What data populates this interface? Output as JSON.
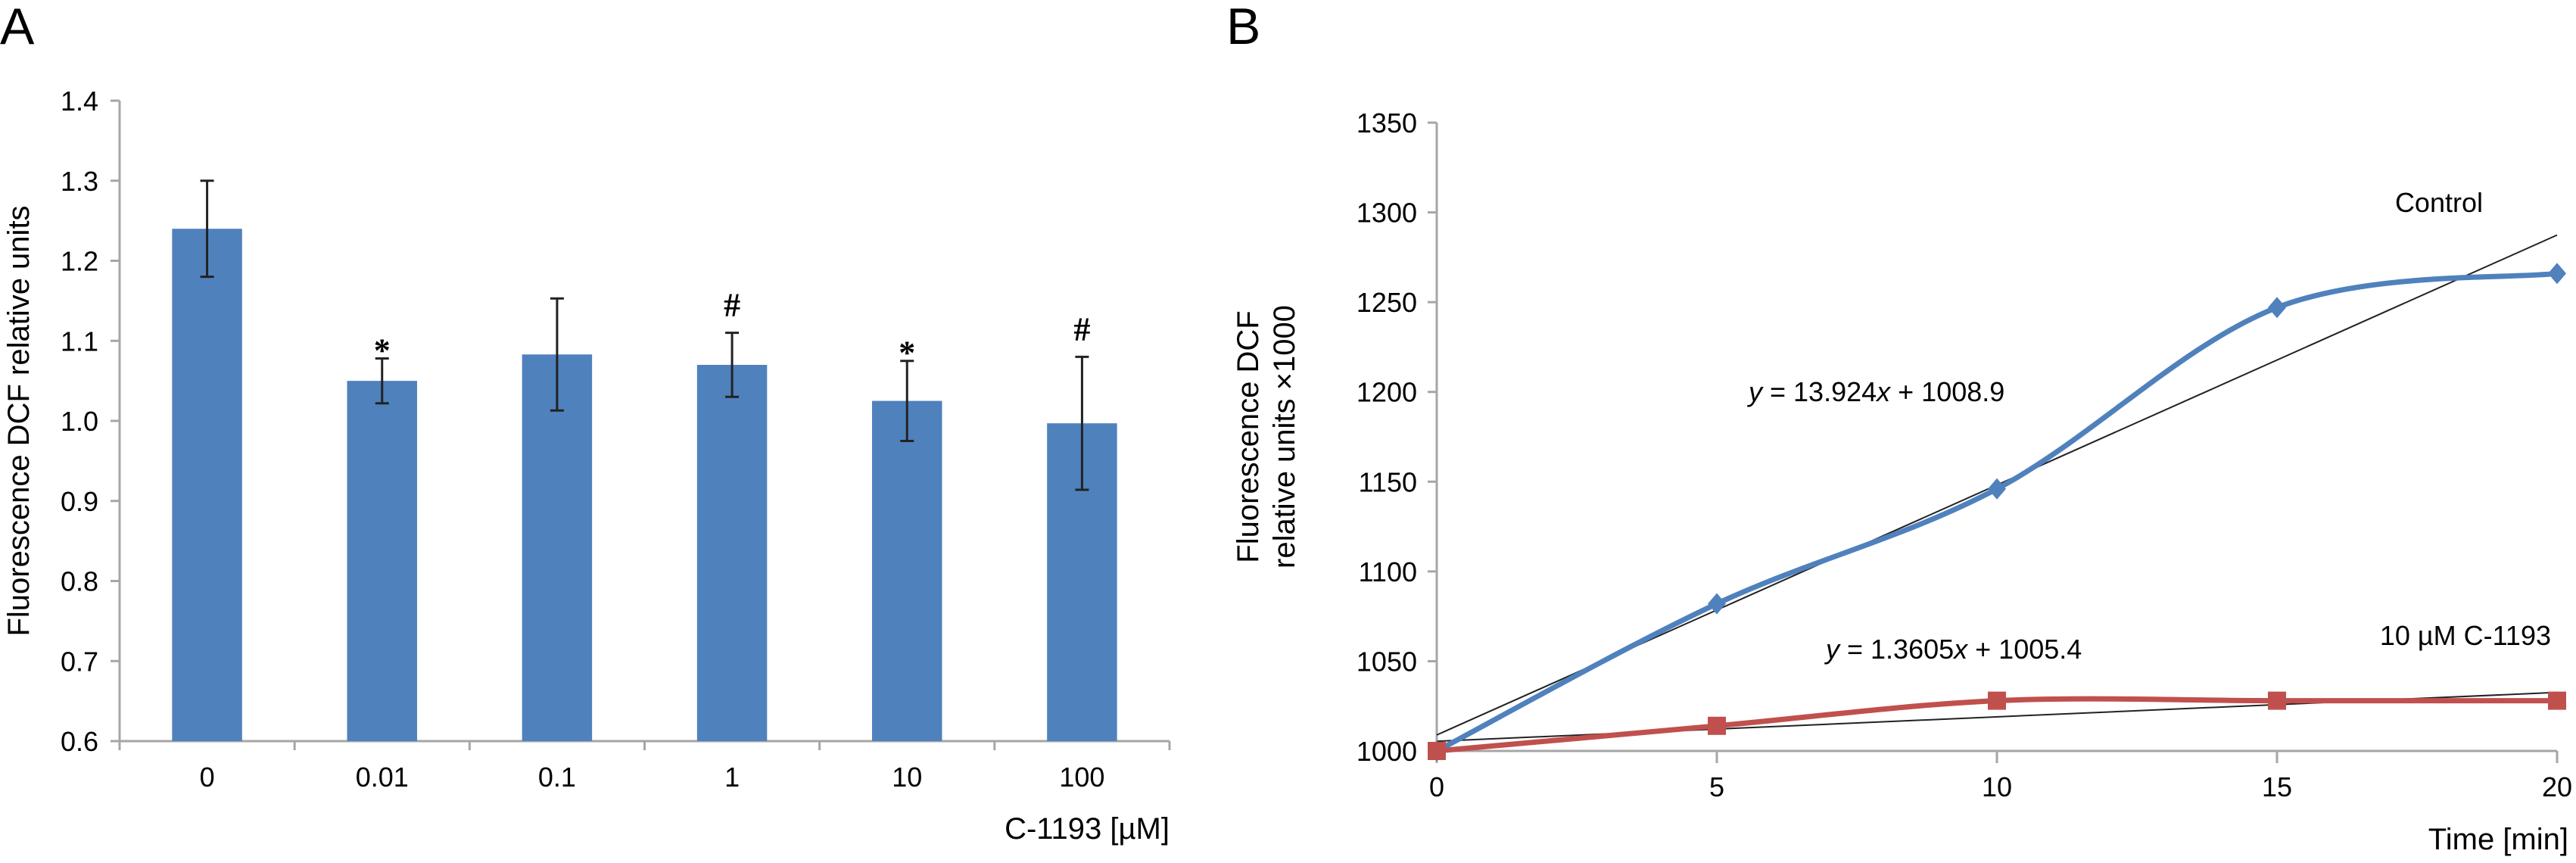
{
  "chart_data": [
    {
      "panel": "A",
      "type": "bar",
      "title": "",
      "xlabel": "C-1193 [µM]",
      "ylabel": "Fluorescence DCF relative units",
      "ylim": [
        0.6,
        1.4
      ],
      "yticks": [
        "0.6",
        "0.7",
        "0.8",
        "0.9",
        "1.0",
        "1.1",
        "1.2",
        "1.3",
        "1.4"
      ],
      "ytick_values": [
        0.6,
        0.7,
        0.8,
        0.9,
        1.0,
        1.1,
        1.2,
        1.3,
        1.4
      ],
      "categories": [
        "0",
        "0.01",
        "0.1",
        "1",
        "10",
        "100"
      ],
      "values": [
        1.24,
        1.05,
        1.083,
        1.07,
        1.025,
        0.997
      ],
      "error": [
        0.06,
        0.028,
        0.07,
        0.04,
        0.05,
        0.083
      ],
      "annotations": [
        "",
        "*",
        "",
        "#",
        "*",
        "#"
      ],
      "grid": false,
      "bar_color": "#4F81BD",
      "error_color": "#222222"
    },
    {
      "panel": "B",
      "type": "line",
      "title": "",
      "xlabel": "Time [min]",
      "ylabel_line1": "Fluorescence DCF",
      "ylabel_line2": "relative units ×1000",
      "xlim": [
        0,
        20
      ],
      "ylim": [
        1000,
        1350
      ],
      "xticks": [
        "0",
        "5",
        "10",
        "15",
        "20"
      ],
      "xtick_values": [
        0,
        5,
        10,
        15,
        20
      ],
      "yticks": [
        "1000",
        "1050",
        "1100",
        "1150",
        "1200",
        "1250",
        "1300",
        "1350"
      ],
      "ytick_values": [
        1000,
        1050,
        1100,
        1150,
        1200,
        1250,
        1300,
        1350
      ],
      "x": [
        0,
        5,
        10,
        15,
        20
      ],
      "grid": false,
      "series": [
        {
          "name": "Control",
          "values": [
            1000,
            1082,
            1146,
            1247,
            1266
          ],
          "color": "#4F81BD",
          "marker": "diamond",
          "trendline": {
            "slope": 13.924,
            "intercept": 1008.9,
            "equation": "y = 13.924x + 1008.9"
          }
        },
        {
          "name": "10 µM C-1193",
          "values": [
            1000,
            1014,
            1028,
            1028,
            1028
          ],
          "color": "#C0504D",
          "marker": "square",
          "trendline": {
            "slope": 1.3605,
            "intercept": 1005.4,
            "equation": "y = 1.3605x + 1005.4"
          }
        }
      ],
      "annotations": {
        "control_label": "Control",
        "treated_label": "10 µM C-1193",
        "eq_control_prefix": "y",
        "eq_control_body": " = 13.924",
        "eq_control_x": "x",
        "eq_control_tail": " + 1008.9",
        "eq_treated_prefix": "y",
        "eq_treated_body": " = 1.3605",
        "eq_treated_x": "x",
        "eq_treated_tail": " + 1005.4"
      },
      "trendline_color": "#222222"
    }
  ]
}
